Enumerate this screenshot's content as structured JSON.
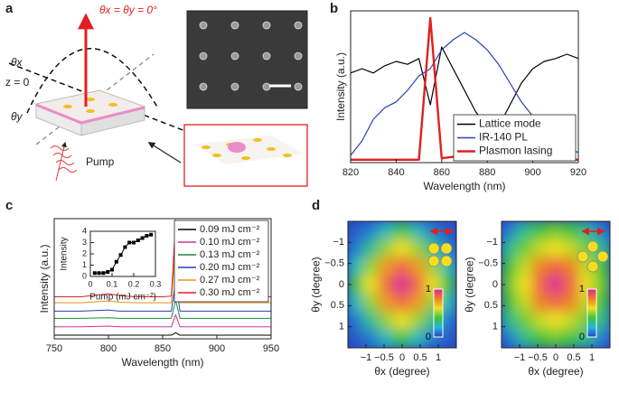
{
  "panel_labels": [
    "a",
    "b",
    "c",
    "d"
  ],
  "panel_a": {
    "normal_label": "θx = θy = 0°",
    "theta_x": "θx",
    "plane": "z = 0",
    "theta_y": "θy",
    "pump": "Pump"
  },
  "chart_data": [
    {
      "type": "line",
      "x_label": "Wavelength (nm)",
      "y_label": "Intensity (a.u.)",
      "x": [
        820,
        825,
        830,
        835,
        840,
        845,
        850,
        855,
        860,
        865,
        870,
        875,
        880,
        885,
        890,
        895,
        900,
        905,
        910,
        915,
        920
      ],
      "series": [
        {
          "name": "Lattice mode",
          "color": "#000000",
          "width": 1.2,
          "values": [
            0.62,
            0.65,
            0.62,
            0.67,
            0.7,
            0.68,
            0.72,
            0.4,
            0.8,
            0.65,
            0.5,
            0.35,
            0.25,
            0.25,
            0.4,
            0.55,
            0.65,
            0.7,
            0.72,
            0.75,
            0.72
          ]
        },
        {
          "name": "IR-140 PL",
          "color": "#2b3fb8",
          "width": 1.2,
          "values": [
            0.05,
            0.15,
            0.3,
            0.38,
            0.42,
            0.5,
            0.6,
            0.65,
            0.78,
            0.85,
            0.9,
            0.85,
            0.78,
            0.68,
            0.55,
            0.42,
            0.32,
            0.22,
            0.15,
            0.1,
            0.07
          ]
        },
        {
          "name": "Plasmon lasing",
          "color": "#e02020",
          "width": 2.4,
          "values": [
            0.02,
            0.02,
            0.02,
            0.02,
            0.02,
            0.02,
            0.02,
            1.0,
            0.03,
            0.04,
            0.03,
            0.02,
            0.02,
            0.02,
            0.02,
            0.02,
            0.02,
            0.02,
            0.02,
            0.02,
            0.02
          ]
        }
      ],
      "xlim": [
        820,
        920
      ],
      "xticks": [
        820,
        840,
        860,
        880,
        900,
        920
      ],
      "ylim": [
        0,
        1.05
      ],
      "legend": "lower right"
    },
    {
      "type": "line",
      "x_label": "Wavelength (nm)",
      "y_label": "Intensity (a.u.)",
      "x": [
        750,
        775,
        800,
        810,
        825,
        850,
        858,
        862,
        866,
        875,
        900,
        925,
        950
      ],
      "series": [
        {
          "name": "0.09 mJ cm⁻²",
          "color": "#000000",
          "width": 1,
          "values": [
            0.3,
            0.3,
            0.3,
            0.3,
            0.3,
            0.3,
            0.3,
            0.5,
            0.3,
            0.3,
            0.3,
            0.3,
            0.3
          ]
        },
        {
          "name": "0.10 mJ cm⁻²",
          "color": "#d0309a",
          "width": 1,
          "values": [
            1.0,
            1.0,
            1.05,
            1.0,
            1.0,
            1.0,
            1.0,
            2.0,
            1.0,
            1.0,
            1.0,
            1.0,
            1.0
          ]
        },
        {
          "name": "0.13 mJ cm⁻²",
          "color": "#1a8a3a",
          "width": 1,
          "values": [
            1.7,
            1.7,
            1.75,
            1.7,
            1.7,
            1.7,
            1.7,
            3.2,
            1.7,
            1.7,
            1.7,
            1.7,
            1.7
          ]
        },
        {
          "name": "0.20 mJ cm⁻²",
          "color": "#2b3fb8",
          "width": 1,
          "values": [
            2.3,
            2.3,
            2.4,
            2.3,
            2.3,
            2.3,
            2.3,
            4.8,
            2.3,
            2.3,
            2.3,
            2.3,
            2.3
          ]
        },
        {
          "name": "0.27 mJ cm⁻²",
          "color": "#e89020",
          "width": 1,
          "values": [
            3.0,
            3.0,
            3.15,
            3.05,
            3.0,
            3.0,
            3.0,
            8.0,
            3.0,
            3.0,
            3.0,
            3.0,
            3.0
          ]
        },
        {
          "name": "0.30 mJ cm⁻²",
          "color": "#e02020",
          "width": 1,
          "values": [
            3.5,
            3.5,
            3.75,
            3.6,
            3.5,
            3.5,
            3.55,
            9.9,
            3.55,
            3.5,
            3.5,
            3.5,
            3.5
          ]
        }
      ],
      "xlim": [
        750,
        950
      ],
      "xticks": [
        750,
        800,
        850,
        900,
        950
      ],
      "ylim": [
        0,
        10
      ],
      "legend": "upper right"
    },
    {
      "type": "line",
      "markers": true,
      "x_label": "Pump (mJ cm⁻²)",
      "y_label": "Intensity",
      "x": [
        0.02,
        0.04,
        0.06,
        0.08,
        0.1,
        0.12,
        0.14,
        0.16,
        0.18,
        0.2,
        0.22,
        0.24,
        0.26,
        0.28
      ],
      "series": [
        {
          "color": "#000000",
          "width": 1,
          "values": [
            0.3,
            0.3,
            0.3,
            0.4,
            0.6,
            1.3,
            1.9,
            2.6,
            3.0,
            3.0,
            3.2,
            3.4,
            3.6,
            3.7
          ]
        }
      ],
      "xlim": [
        0,
        0.3
      ],
      "xticks": [
        0,
        0.1,
        0.2,
        0.3
      ],
      "ylim": [
        0,
        4
      ],
      "yticks": [
        0,
        1,
        2,
        3,
        4
      ]
    },
    {
      "type": "heatmap",
      "x_label": "θx (degree)",
      "y_label": "θy (degree)",
      "z": [
        [
          0.05,
          0.1,
          0.25,
          0.4,
          0.25,
          0.1,
          0.05
        ],
        [
          0.1,
          0.3,
          0.5,
          0.6,
          0.5,
          0.3,
          0.1
        ],
        [
          0.25,
          0.5,
          0.75,
          0.85,
          0.75,
          0.5,
          0.25
        ],
        [
          0.4,
          0.6,
          0.85,
          1,
          0.85,
          0.6,
          0.4
        ],
        [
          0.25,
          0.5,
          0.75,
          0.85,
          0.75,
          0.5,
          0.25
        ],
        [
          0.1,
          0.3,
          0.5,
          0.6,
          0.5,
          0.3,
          0.1
        ],
        [
          0.05,
          0.1,
          0.25,
          0.4,
          0.25,
          0.1,
          0.05
        ]
      ],
      "xlim": [
        -1.5,
        1.5
      ],
      "ylim": [
        -1.5,
        1.5
      ],
      "y_inverted": true,
      "xticks": [
        {
          "value": -1,
          "label": "−1"
        },
        {
          "value": -0.5,
          "label": "−0.5"
        },
        0,
        0.5,
        1
      ],
      "yticks": [
        {
          "value": -1,
          "label": "−1"
        },
        {
          "value": -0.5,
          "label": "−0.5"
        },
        0,
        0.5,
        1
      ],
      "zlim": [
        0,
        1
      ],
      "colorbar_ticks": [
        0,
        1
      ],
      "colormap": [
        "#2a3fbf",
        "#22b8e0",
        "#3cc43c",
        "#f0e020",
        "#f08020",
        "#e0209a"
      ]
    },
    {
      "type": "heatmap",
      "x_label": "θx (degree)",
      "y_label": "θy (degree)",
      "z": [
        [
          0.1,
          0.3,
          0.4,
          0.45,
          0.4,
          0.3,
          0.1
        ],
        [
          0.3,
          0.45,
          0.55,
          0.6,
          0.55,
          0.45,
          0.3
        ],
        [
          0.4,
          0.55,
          0.8,
          0.85,
          0.8,
          0.55,
          0.4
        ],
        [
          0.45,
          0.6,
          0.85,
          1,
          0.85,
          0.6,
          0.45
        ],
        [
          0.4,
          0.55,
          0.8,
          0.85,
          0.8,
          0.55,
          0.4
        ],
        [
          0.3,
          0.45,
          0.55,
          0.6,
          0.55,
          0.45,
          0.3
        ],
        [
          0.1,
          0.3,
          0.4,
          0.45,
          0.4,
          0.3,
          0.1
        ]
      ],
      "xlim": [
        -1.5,
        1.5
      ],
      "ylim": [
        -1.5,
        1.5
      ],
      "y_inverted": true,
      "xticks": [
        {
          "value": -1,
          "label": "−1"
        },
        {
          "value": -0.5,
          "label": "−0.5"
        },
        0,
        0.5,
        1
      ],
      "yticks": [
        {
          "value": -1,
          "label": "−1"
        },
        {
          "value": -0.5,
          "label": "−0.5"
        },
        0,
        0.5,
        1
      ],
      "zlim": [
        0,
        1
      ],
      "colorbar_ticks": [
        0,
        1
      ],
      "colormap": [
        "#2a3fbf",
        "#22b8e0",
        "#3cc43c",
        "#f0e020",
        "#f08020",
        "#e0209a"
      ]
    }
  ]
}
